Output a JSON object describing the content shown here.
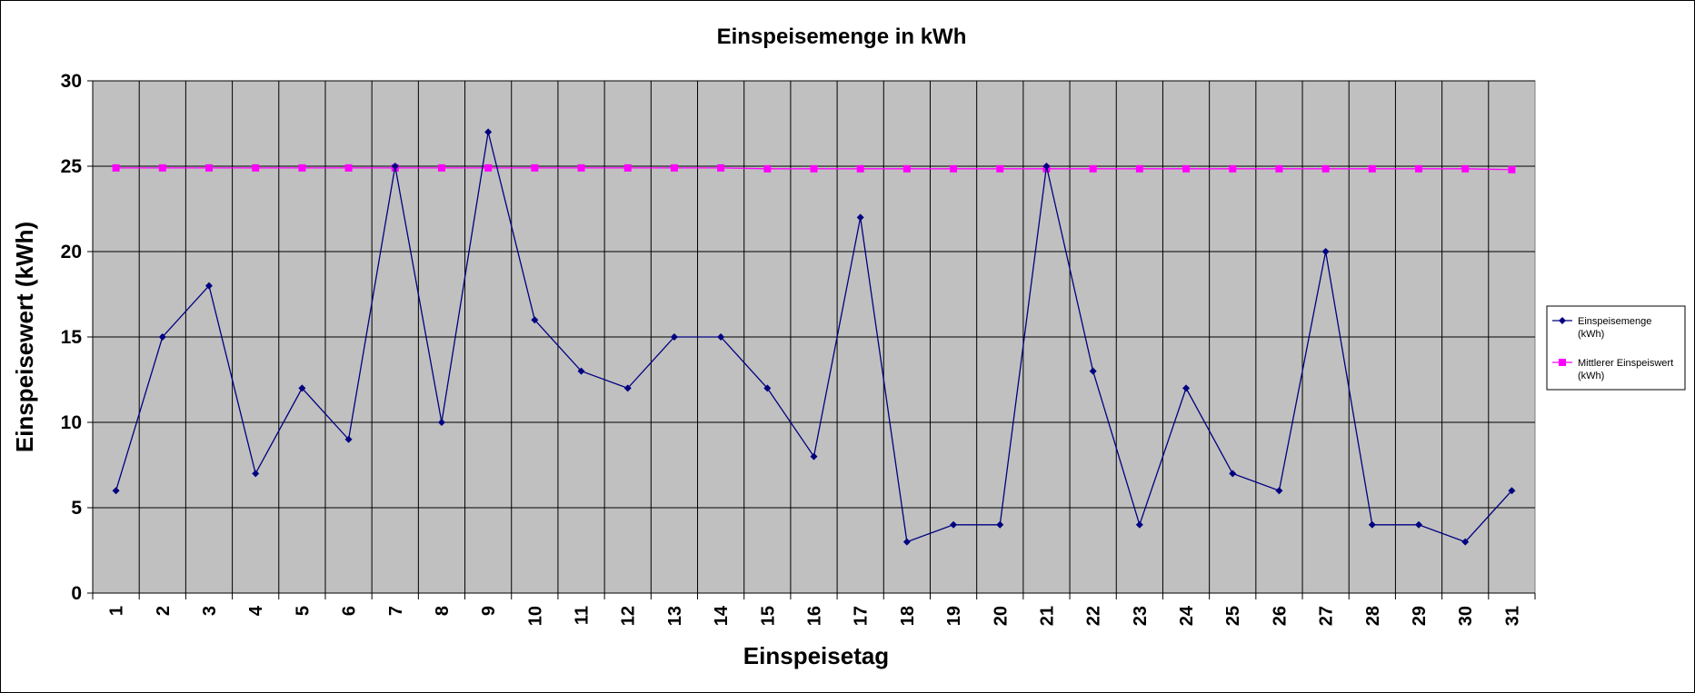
{
  "chart_data": {
    "type": "line",
    "title": "Einspeisemenge in kWh",
    "xlabel": "Einspeisetag",
    "ylabel": "Einspeisewert  (kWh)",
    "ylim": [
      0,
      30
    ],
    "yticks": [
      0,
      5,
      10,
      15,
      20,
      25,
      30
    ],
    "grid": true,
    "legend_position": "right",
    "categories": [
      "1",
      "2",
      "3",
      "4",
      "5",
      "6",
      "7",
      "8",
      "9",
      "10",
      "11",
      "12",
      "13",
      "14",
      "15",
      "16",
      "17",
      "18",
      "19",
      "20",
      "21",
      "22",
      "23",
      "24",
      "25",
      "26",
      "27",
      "28",
      "29",
      "30",
      "31"
    ],
    "series": [
      {
        "name": "Einspeisemenge (kWh)",
        "legend_lines": [
          "Einspeisemenge",
          "(kWh)"
        ],
        "color": "#000080",
        "marker": "diamond",
        "values": [
          6,
          15,
          18,
          7,
          12,
          9,
          25,
          10,
          27,
          16,
          13,
          12,
          15,
          15,
          12,
          8,
          22,
          3,
          4,
          4,
          25,
          13,
          4,
          12,
          7,
          6,
          20,
          4,
          4,
          3,
          6
        ]
      },
      {
        "name": "Mittlerer Einspeiswert (kWh)",
        "legend_lines": [
          "Mittlerer Einspeiswert",
          "(kWh)"
        ],
        "color": "#FF00FF",
        "marker": "square",
        "values": [
          24.9,
          24.9,
          24.9,
          24.9,
          24.9,
          24.9,
          24.9,
          24.9,
          24.9,
          24.9,
          24.9,
          24.9,
          24.9,
          24.9,
          24.85,
          24.85,
          24.85,
          24.85,
          24.85,
          24.85,
          24.85,
          24.85,
          24.85,
          24.85,
          24.85,
          24.85,
          24.85,
          24.85,
          24.85,
          24.85,
          24.8
        ]
      }
    ],
    "colors": {
      "plot_background": "#C0C0C0",
      "gridline": "#000000"
    }
  }
}
